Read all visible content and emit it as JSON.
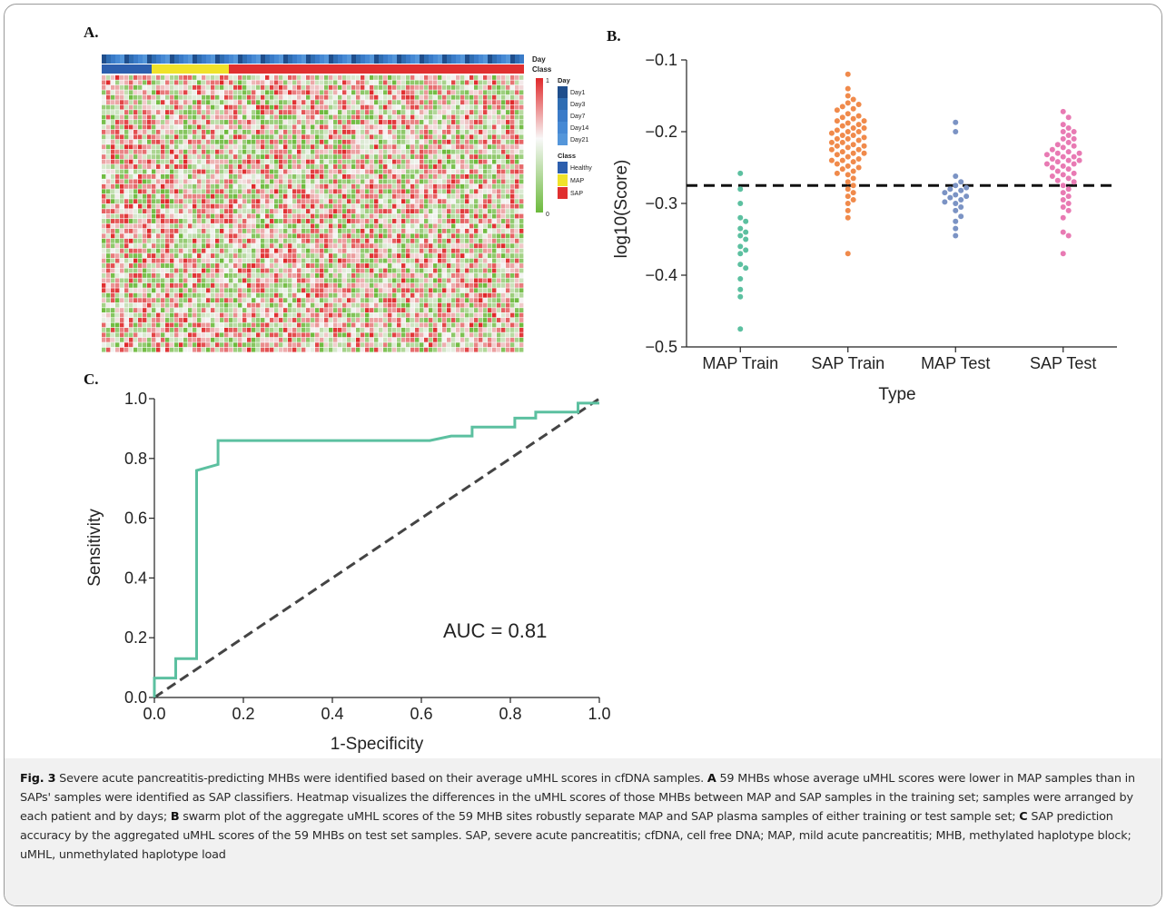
{
  "panel_labels": {
    "a": "A.",
    "b": "B.",
    "c": "C."
  },
  "heatmap": {
    "track_labels": {
      "day": "Day",
      "class": "Class"
    },
    "scale": {
      "max": "1",
      "min": "0"
    },
    "legend": {
      "day_title": "Day",
      "day_items": [
        {
          "label": "Day1",
          "color": "#1f4e8c"
        },
        {
          "label": "Day3",
          "color": "#2f6db3"
        },
        {
          "label": "Day7",
          "color": "#3a7bc8"
        },
        {
          "label": "Day14",
          "color": "#4689d4"
        },
        {
          "label": "Day21",
          "color": "#5496da"
        }
      ],
      "class_title": "Class",
      "class_items": [
        {
          "label": "Healthy",
          "color": "#2d5fae"
        },
        {
          "label": "MAP",
          "color": "#f0e22a"
        },
        {
          "label": "SAP",
          "color": "#e03030"
        }
      ]
    },
    "colors": {
      "low": "#6cba3c",
      "mid": "#f4f4f4",
      "high": "#e0282a"
    }
  },
  "chart_data": [
    {
      "type": "scatter",
      "subtype": "swarm",
      "xlabel": "Type",
      "ylabel": "log10(Score)",
      "categories": [
        "MAP Train",
        "SAP Train",
        "MAP Test",
        "SAP Test"
      ],
      "ylim": [
        -0.5,
        -0.1
      ],
      "yticks": [
        "−0.1",
        "−0.2",
        "−0.3",
        "−0.4",
        "−0.5"
      ],
      "threshold": -0.275,
      "series": [
        {
          "color": "#5cc0a0",
          "values": [
            -0.258,
            -0.28,
            -0.3,
            -0.32,
            -0.325,
            -0.335,
            -0.34,
            -0.345,
            -0.35,
            -0.36,
            -0.365,
            -0.37,
            -0.385,
            -0.39,
            -0.405,
            -0.42,
            -0.43,
            -0.475
          ]
        },
        {
          "color": "#f08a4b",
          "values": [
            -0.12,
            -0.14,
            -0.15,
            -0.155,
            -0.16,
            -0.162,
            -0.165,
            -0.168,
            -0.17,
            -0.175,
            -0.178,
            -0.18,
            -0.182,
            -0.185,
            -0.185,
            -0.188,
            -0.19,
            -0.192,
            -0.195,
            -0.195,
            -0.198,
            -0.2,
            -0.2,
            -0.202,
            -0.205,
            -0.205,
            -0.208,
            -0.21,
            -0.21,
            -0.212,
            -0.215,
            -0.215,
            -0.218,
            -0.22,
            -0.22,
            -0.222,
            -0.225,
            -0.225,
            -0.228,
            -0.23,
            -0.23,
            -0.232,
            -0.235,
            -0.238,
            -0.24,
            -0.24,
            -0.242,
            -0.245,
            -0.248,
            -0.25,
            -0.252,
            -0.255,
            -0.258,
            -0.26,
            -0.265,
            -0.27,
            -0.275,
            -0.28,
            -0.285,
            -0.29,
            -0.295,
            -0.3,
            -0.31,
            -0.32,
            -0.37
          ]
        },
        {
          "color": "#7b93c4",
          "values": [
            -0.187,
            -0.2,
            -0.262,
            -0.27,
            -0.275,
            -0.278,
            -0.28,
            -0.282,
            -0.285,
            -0.288,
            -0.29,
            -0.292,
            -0.295,
            -0.298,
            -0.3,
            -0.305,
            -0.31,
            -0.318,
            -0.325,
            -0.335,
            -0.345
          ]
        },
        {
          "color": "#e87ab3",
          "values": [
            -0.172,
            -0.18,
            -0.19,
            -0.195,
            -0.2,
            -0.2,
            -0.205,
            -0.21,
            -0.21,
            -0.215,
            -0.218,
            -0.22,
            -0.222,
            -0.225,
            -0.228,
            -0.23,
            -0.23,
            -0.232,
            -0.235,
            -0.235,
            -0.238,
            -0.24,
            -0.24,
            -0.242,
            -0.245,
            -0.245,
            -0.248,
            -0.25,
            -0.252,
            -0.255,
            -0.258,
            -0.26,
            -0.262,
            -0.265,
            -0.268,
            -0.27,
            -0.275,
            -0.28,
            -0.285,
            -0.29,
            -0.295,
            -0.3,
            -0.305,
            -0.31,
            -0.32,
            -0.34,
            -0.345,
            -0.37
          ]
        }
      ]
    },
    {
      "type": "line",
      "subtype": "roc",
      "xlabel": "1-Specificity",
      "ylabel": "Sensitivity",
      "xlim": [
        0,
        1
      ],
      "ylim": [
        0,
        1
      ],
      "xticks": [
        "0.0",
        "0.2",
        "0.4",
        "0.6",
        "0.8",
        "1.0"
      ],
      "yticks": [
        "0.0",
        "0.2",
        "0.4",
        "0.6",
        "0.8",
        "1.0"
      ],
      "annotation": "AUC = 0.81",
      "roc_color": "#5cc0a0",
      "diagonal_color": "#444444",
      "x": [
        0,
        0,
        0.048,
        0.048,
        0.095,
        0.095,
        0.143,
        0.143,
        0.619,
        0.667,
        0.714,
        0.714,
        0.81,
        0.81,
        0.857,
        0.857,
        0.952,
        0.952,
        1.0
      ],
      "y": [
        0,
        0.065,
        0.065,
        0.13,
        0.13,
        0.76,
        0.78,
        0.86,
        0.86,
        0.875,
        0.875,
        0.905,
        0.905,
        0.935,
        0.935,
        0.955,
        0.955,
        0.985,
        0.985
      ]
    }
  ],
  "caption": {
    "fig_label": "Fig. 3",
    "part1": "  Severe acute pancreatitis-predicting MHBs were identified based on their average uMHL scores in cfDNA samples. ",
    "a_label": "A",
    "part2": " 59 MHBs whose average uMHL scores were lower in MAP samples than in SAPs' samples were identified as SAP classifiers. Heatmap visualizes the differences in the uMHL scores of those MHBs between MAP and SAP samples in the training set; samples were arranged by each patient and by days; ",
    "b_label": "B",
    "part3": " swarm plot of the aggregate uMHL scores of the 59 MHB sites robustly separate MAP and SAP plasma samples of either training or test sample set; ",
    "c_label": "C",
    "part4": " SAP prediction accuracy by the aggregated uMHL scores of the 59 MHBs on test set samples. SAP, severe acute pancreatitis; cfDNA, cell free DNA; MAP, mild acute pancreatitis; MHB, methylated haplotype block; uMHL, unmethylated haplotype load"
  }
}
